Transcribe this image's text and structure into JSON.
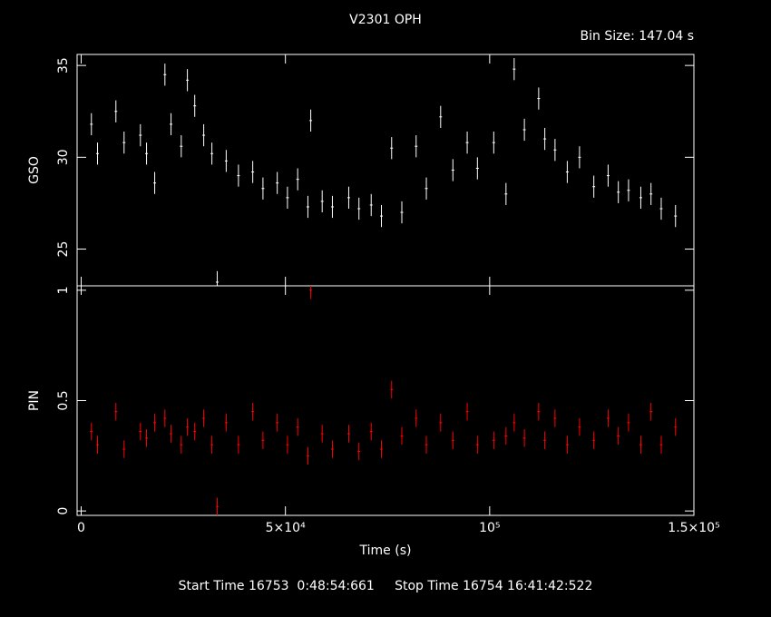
{
  "chart_data": {
    "type": "scatter",
    "title": "V2301 OPH",
    "subtitle": "Bin Size: 147.04 s",
    "xlabel": "Time (s)",
    "footer": "Start Time 16753  0:48:54:661     Stop Time 16754 16:41:42:522",
    "xlim": [
      -1000,
      150000
    ],
    "xticks": [
      0,
      {
        "value": 50000,
        "label": "5×10⁴"
      },
      {
        "value": 100000,
        "label": "10⁵"
      },
      {
        "value": 150000,
        "label": "1.5×10⁵"
      }
    ],
    "x": [
      2500,
      4000,
      8500,
      10500,
      14500,
      16000,
      18000,
      20500,
      22000,
      24500,
      26000,
      27800,
      30000,
      32000,
      33300,
      35500,
      38500,
      42000,
      44500,
      48000,
      50500,
      53000,
      55500,
      56200,
      59000,
      61500,
      65500,
      68000,
      71000,
      73500,
      76000,
      78500,
      82000,
      84500,
      88000,
      91000,
      94500,
      97000,
      101000,
      104000,
      106000,
      108500,
      112000,
      113500,
      116000,
      119000,
      122000,
      125500,
      129000,
      131500,
      134000,
      137000,
      139500,
      142000,
      145500
    ],
    "series": [
      {
        "name": "GSO",
        "color": "#ffffff",
        "error": 0.6,
        "ylim": [
          23,
          35.6
        ],
        "yticks": [
          25,
          30,
          35
        ],
        "values": [
          31.8,
          30.2,
          32.5,
          30.8,
          31.2,
          30.2,
          28.6,
          34.5,
          31.8,
          30.6,
          34.2,
          32.8,
          31.2,
          30.2,
          23.2,
          29.8,
          29.0,
          29.2,
          28.3,
          28.6,
          27.8,
          28.8,
          27.3,
          32.0,
          27.6,
          27.3,
          27.8,
          27.2,
          27.4,
          26.8,
          30.5,
          27.0,
          30.6,
          28.3,
          32.2,
          29.3,
          30.8,
          29.4,
          30.8,
          28.0,
          34.8,
          31.5,
          33.2,
          31.0,
          30.4,
          29.2,
          30.0,
          28.4,
          29.0,
          28.1,
          28.2,
          27.8,
          28.0,
          27.2,
          26.8
        ]
      },
      {
        "name": "PIN",
        "color": "#ff0000",
        "error": 0.04,
        "ylim": [
          -0.02,
          1.02
        ],
        "yticks": [
          0,
          0.5,
          1
        ],
        "values": [
          0.36,
          0.3,
          0.45,
          0.28,
          0.36,
          0.33,
          0.4,
          0.42,
          0.35,
          0.3,
          0.38,
          0.36,
          0.42,
          0.3,
          0.02,
          0.4,
          0.3,
          0.45,
          0.32,
          0.4,
          0.3,
          0.38,
          0.25,
          1.0,
          0.35,
          0.28,
          0.35,
          0.27,
          0.36,
          0.28,
          0.55,
          0.34,
          0.42,
          0.3,
          0.4,
          0.32,
          0.45,
          0.3,
          0.32,
          0.34,
          0.4,
          0.33,
          0.45,
          0.32,
          0.42,
          0.3,
          0.38,
          0.32,
          0.42,
          0.34,
          0.4,
          0.3,
          0.45,
          0.3,
          0.38
        ]
      }
    ]
  }
}
